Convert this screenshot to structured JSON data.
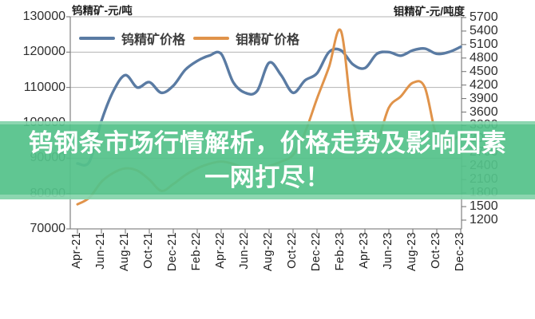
{
  "overlay": {
    "line1": "钨钢条市场行情解析，价格走势及影响因素",
    "line2": "一网打尽！",
    "bg_color": "#54c28a",
    "text_color": "#ffffff"
  },
  "chart_data": {
    "type": "line",
    "legend_position": "top",
    "grid": true,
    "left_axis": {
      "title": "钨精矿-元/吨",
      "min": 70000,
      "max": 130000,
      "ticks": [
        130000,
        120000,
        110000,
        100000,
        90000,
        80000,
        70000
      ]
    },
    "right_axis": {
      "title": "钼精矿-元/吨度",
      "min": 1200,
      "max": 5700,
      "ticks": [
        5700,
        5400,
        5100,
        4800,
        4500,
        4200,
        3900,
        3600,
        3300,
        3000,
        2700,
        2400,
        2100,
        1800,
        1500,
        1200
      ]
    },
    "x_tick_labels": [
      "Apr-21",
      "Jun-21",
      "Aug-21",
      "Oct-21",
      "Dec-21",
      "Feb-22",
      "Apr-22",
      "Jun-22",
      "Aug-22",
      "Oct-22",
      "Dec-22",
      "Feb-23",
      "Apr-23",
      "Jun-23",
      "Aug-23",
      "Oct-23",
      "Dec-23"
    ],
    "months": [
      "Apr-21",
      "May-21",
      "Jun-21",
      "Jul-21",
      "Aug-21",
      "Sep-21",
      "Oct-21",
      "Nov-21",
      "Dec-21",
      "Jan-22",
      "Feb-22",
      "Mar-22",
      "Apr-22",
      "May-22",
      "Jun-22",
      "Jul-22",
      "Aug-22",
      "Sep-22",
      "Oct-22",
      "Nov-22",
      "Dec-22",
      "Jan-23",
      "Feb-23",
      "Mar-23",
      "Apr-23",
      "May-23",
      "Jun-23",
      "Jul-23",
      "Aug-23",
      "Sep-23",
      "Oct-23",
      "Nov-23",
      "Dec-23"
    ],
    "series": [
      {
        "name": "钨精矿价格",
        "axis": "left",
        "color": "#5a7ba3",
        "values": [
          88500,
          89000,
          100500,
          109000,
          113500,
          110000,
          111500,
          108500,
          110500,
          115000,
          117500,
          119000,
          119500,
          111500,
          108500,
          109000,
          117000,
          113500,
          108500,
          112000,
          114000,
          120000,
          120500,
          116500,
          115500,
          119500,
          120000,
          119000,
          120500,
          121000,
          119500,
          120000,
          121500
        ]
      },
      {
        "name": "钼精矿价格",
        "axis": "right",
        "color": "#e0934a",
        "values": [
          1550,
          1700,
          2050,
          2250,
          2350,
          2300,
          2100,
          1850,
          2000,
          2200,
          2350,
          2450,
          2500,
          2450,
          2350,
          2300,
          2400,
          2500,
          2650,
          3150,
          3900,
          4600,
          5400,
          3400,
          3000,
          2950,
          3700,
          3950,
          4250,
          4150,
          3050,
          2950,
          3100
        ]
      }
    ],
    "axis_colors": {
      "gridline": "#b3b3b3",
      "axis_line": "#8a8a8a",
      "tick": "#6e6e6e"
    }
  }
}
